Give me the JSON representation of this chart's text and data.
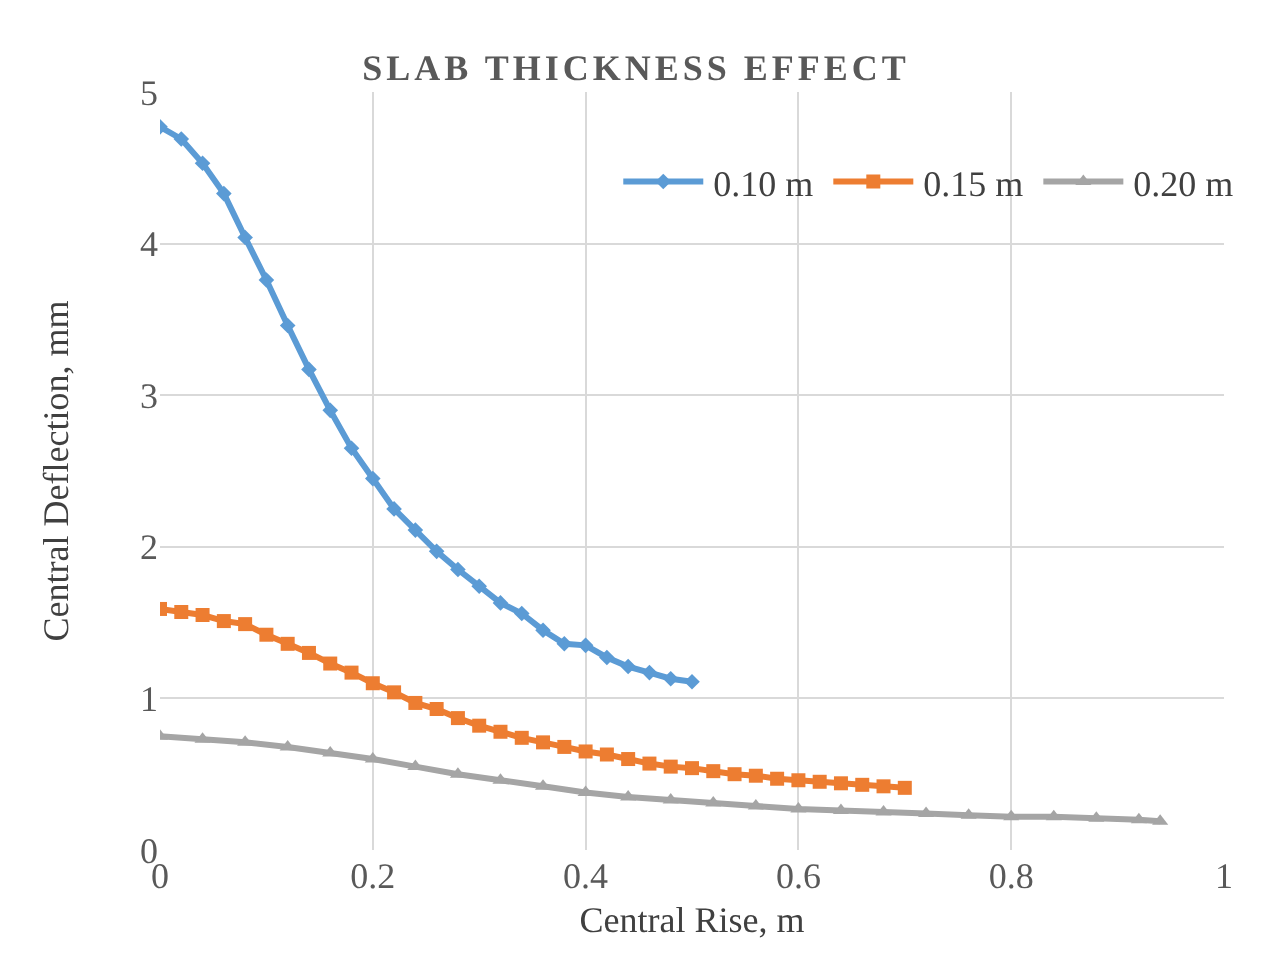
{
  "chart_data": {
    "type": "line",
    "title": "SLAB THICKNESS EFFECT",
    "xlabel": "Central Rise, m",
    "ylabel": "Central Deflection, mm",
    "xlim": [
      0,
      1
    ],
    "xticks": [
      0,
      0.2,
      0.4,
      0.6,
      0.8,
      1
    ],
    "ylim": [
      0,
      5
    ],
    "yticks": [
      0,
      1,
      2,
      3,
      4,
      5
    ],
    "grid": true,
    "legend": "top right",
    "series": [
      {
        "name": "0.10 m",
        "color": "#5b9bd5",
        "marker": "diamond",
        "x": [
          0,
          0.02,
          0.04,
          0.06,
          0.08,
          0.1,
          0.12,
          0.14,
          0.16,
          0.18,
          0.2,
          0.22,
          0.24,
          0.26,
          0.28,
          0.3,
          0.32,
          0.34,
          0.36,
          0.38,
          0.4,
          0.42,
          0.44,
          0.46,
          0.48,
          0.5
        ],
        "values": [
          4.77,
          4.69,
          4.53,
          4.33,
          4.04,
          3.76,
          3.46,
          3.17,
          2.9,
          2.65,
          2.45,
          2.25,
          2.11,
          1.97,
          1.85,
          1.74,
          1.63,
          1.56,
          1.45,
          1.36,
          1.35,
          1.27,
          1.21,
          1.17,
          1.13,
          1.11
        ]
      },
      {
        "name": "0.15 m",
        "color": "#ed7d31",
        "marker": "square",
        "x": [
          0,
          0.02,
          0.04,
          0.06,
          0.08,
          0.1,
          0.12,
          0.14,
          0.16,
          0.18,
          0.2,
          0.22,
          0.24,
          0.26,
          0.28,
          0.3,
          0.32,
          0.34,
          0.36,
          0.38,
          0.4,
          0.42,
          0.44,
          0.46,
          0.48,
          0.5,
          0.52,
          0.54,
          0.56,
          0.58,
          0.6,
          0.62,
          0.64,
          0.66,
          0.68,
          0.7
        ],
        "values": [
          1.59,
          1.57,
          1.55,
          1.51,
          1.49,
          1.42,
          1.36,
          1.3,
          1.23,
          1.17,
          1.1,
          1.04,
          0.97,
          0.93,
          0.87,
          0.82,
          0.78,
          0.74,
          0.71,
          0.68,
          0.65,
          0.63,
          0.6,
          0.57,
          0.55,
          0.54,
          0.52,
          0.5,
          0.49,
          0.47,
          0.46,
          0.45,
          0.44,
          0.43,
          0.42,
          0.41
        ]
      },
      {
        "name": "0.20 m",
        "color": "#a5a5a5",
        "marker": "triangle",
        "x": [
          0,
          0.04,
          0.08,
          0.12,
          0.16,
          0.2,
          0.24,
          0.28,
          0.32,
          0.36,
          0.4,
          0.44,
          0.48,
          0.52,
          0.56,
          0.6,
          0.64,
          0.68,
          0.72,
          0.76,
          0.8,
          0.84,
          0.88,
          0.92,
          0.94
        ],
        "values": [
          0.75,
          0.73,
          0.71,
          0.68,
          0.64,
          0.6,
          0.55,
          0.5,
          0.46,
          0.42,
          0.38,
          0.35,
          0.33,
          0.31,
          0.29,
          0.27,
          0.26,
          0.25,
          0.24,
          0.23,
          0.22,
          0.22,
          0.21,
          0.2,
          0.19
        ]
      }
    ]
  }
}
